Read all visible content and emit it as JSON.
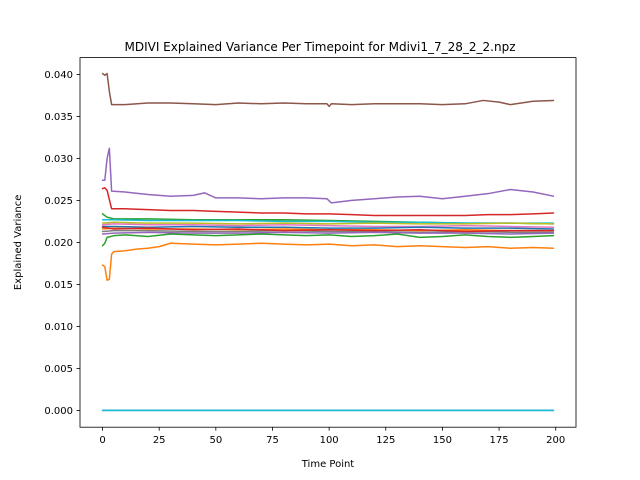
{
  "chart_data": {
    "type": "line",
    "title": "MDIVI Explained Variance Per Timepoint for Mdivi1_7_28_2_2.npz",
    "xlabel": "Time Point",
    "ylabel": "Explained Variance",
    "xlim": [
      -9.95,
      208.95
    ],
    "ylim": [
      -0.002,
      0.042
    ],
    "xticks": [
      0,
      25,
      50,
      75,
      100,
      125,
      150,
      175,
      200
    ],
    "xtick_labels": [
      "0",
      "25",
      "50",
      "75",
      "100",
      "125",
      "150",
      "175",
      "200"
    ],
    "yticks": [
      0.0,
      0.005,
      0.01,
      0.015,
      0.02,
      0.025,
      0.03,
      0.035,
      0.04
    ],
    "ytick_labels": [
      "0.000",
      "0.005",
      "0.010",
      "0.015",
      "0.020",
      "0.025",
      "0.030",
      "0.035",
      "0.040"
    ],
    "grid": false,
    "legend": "none",
    "series": [
      {
        "color": "#8c564b",
        "points": [
          [
            0,
            0.0401
          ],
          [
            1,
            0.0399
          ],
          [
            2,
            0.0401
          ],
          [
            3,
            0.038
          ],
          [
            4,
            0.0364
          ],
          [
            10,
            0.0364
          ],
          [
            20,
            0.0366
          ],
          [
            30,
            0.0366
          ],
          [
            40,
            0.0365
          ],
          [
            50,
            0.0364
          ],
          [
            60,
            0.0366
          ],
          [
            70,
            0.0365
          ],
          [
            80,
            0.0366
          ],
          [
            90,
            0.0365
          ],
          [
            99,
            0.0365
          ],
          [
            100,
            0.0362
          ],
          [
            101,
            0.0365
          ],
          [
            110,
            0.0364
          ],
          [
            120,
            0.0365
          ],
          [
            130,
            0.0365
          ],
          [
            140,
            0.0365
          ],
          [
            150,
            0.0364
          ],
          [
            160,
            0.0365
          ],
          [
            168,
            0.0369
          ],
          [
            175,
            0.0367
          ],
          [
            180,
            0.0364
          ],
          [
            190,
            0.0368
          ],
          [
            199,
            0.0369
          ]
        ]
      },
      {
        "color": "#9467bd",
        "points": [
          [
            0,
            0.0274
          ],
          [
            1,
            0.0274
          ],
          [
            2,
            0.03
          ],
          [
            3,
            0.0312
          ],
          [
            4,
            0.0261
          ],
          [
            10,
            0.026
          ],
          [
            20,
            0.0257
          ],
          [
            30,
            0.0255
          ],
          [
            40,
            0.0256
          ],
          [
            45,
            0.0259
          ],
          [
            50,
            0.0253
          ],
          [
            60,
            0.0253
          ],
          [
            70,
            0.0252
          ],
          [
            80,
            0.0253
          ],
          [
            90,
            0.0253
          ],
          [
            99,
            0.0252
          ],
          [
            101,
            0.0247
          ],
          [
            110,
            0.025
          ],
          [
            120,
            0.0252
          ],
          [
            130,
            0.0254
          ],
          [
            140,
            0.0255
          ],
          [
            150,
            0.0252
          ],
          [
            160,
            0.0255
          ],
          [
            170,
            0.0258
          ],
          [
            180,
            0.0263
          ],
          [
            190,
            0.026
          ],
          [
            199,
            0.0255
          ]
        ]
      },
      {
        "color": "#d62728",
        "points": [
          [
            0,
            0.0264
          ],
          [
            1,
            0.0265
          ],
          [
            2,
            0.0262
          ],
          [
            4,
            0.024
          ],
          [
            10,
            0.024
          ],
          [
            20,
            0.0239
          ],
          [
            30,
            0.0238
          ],
          [
            40,
            0.0238
          ],
          [
            50,
            0.0237
          ],
          [
            60,
            0.0236
          ],
          [
            70,
            0.0235
          ],
          [
            80,
            0.0235
          ],
          [
            90,
            0.0234
          ],
          [
            100,
            0.0234
          ],
          [
            110,
            0.0233
          ],
          [
            120,
            0.0232
          ],
          [
            130,
            0.0232
          ],
          [
            140,
            0.0232
          ],
          [
            150,
            0.0232
          ],
          [
            160,
            0.0232
          ],
          [
            170,
            0.0233
          ],
          [
            180,
            0.0233
          ],
          [
            190,
            0.0234
          ],
          [
            199,
            0.0235
          ]
        ]
      },
      {
        "color": "#2ca02c",
        "points": [
          [
            0,
            0.0234
          ],
          [
            2,
            0.023
          ],
          [
            5,
            0.0228
          ],
          [
            20,
            0.0228
          ],
          [
            40,
            0.0227
          ],
          [
            60,
            0.0227
          ],
          [
            80,
            0.0227
          ],
          [
            100,
            0.0226
          ],
          [
            120,
            0.0225
          ],
          [
            140,
            0.0224
          ],
          [
            160,
            0.0223
          ],
          [
            180,
            0.0223
          ],
          [
            199,
            0.0222
          ]
        ]
      },
      {
        "color": "#17becf",
        "points": [
          [
            0,
            0.0227
          ],
          [
            5,
            0.0227
          ],
          [
            20,
            0.0226
          ],
          [
            40,
            0.0226
          ],
          [
            60,
            0.0226
          ],
          [
            80,
            0.0225
          ],
          [
            100,
            0.0225
          ],
          [
            120,
            0.0224
          ],
          [
            140,
            0.0224
          ],
          [
            160,
            0.0223
          ],
          [
            180,
            0.0223
          ],
          [
            199,
            0.0223
          ]
        ]
      },
      {
        "color": "#bcbd22",
        "points": [
          [
            0,
            0.0223
          ],
          [
            5,
            0.0224
          ],
          [
            20,
            0.0223
          ],
          [
            40,
            0.0223
          ],
          [
            60,
            0.0222
          ],
          [
            80,
            0.0223
          ],
          [
            100,
            0.0222
          ],
          [
            120,
            0.0223
          ],
          [
            140,
            0.0222
          ],
          [
            160,
            0.0222
          ],
          [
            180,
            0.0223
          ],
          [
            199,
            0.0222
          ]
        ]
      },
      {
        "color": "#e377c2",
        "points": [
          [
            0,
            0.0221
          ],
          [
            5,
            0.0222
          ],
          [
            20,
            0.0221
          ],
          [
            40,
            0.0221
          ],
          [
            60,
            0.022
          ],
          [
            80,
            0.0221
          ],
          [
            100,
            0.022
          ],
          [
            120,
            0.0219
          ],
          [
            140,
            0.0219
          ],
          [
            160,
            0.022
          ],
          [
            180,
            0.0219
          ],
          [
            199,
            0.0218
          ]
        ]
      },
      {
        "color": "#1f77b4",
        "points": [
          [
            0,
            0.0219
          ],
          [
            5,
            0.0219
          ],
          [
            20,
            0.0218
          ],
          [
            40,
            0.0219
          ],
          [
            60,
            0.0218
          ],
          [
            80,
            0.0218
          ],
          [
            100,
            0.0217
          ],
          [
            120,
            0.0217
          ],
          [
            140,
            0.0218
          ],
          [
            160,
            0.0217
          ],
          [
            180,
            0.0217
          ],
          [
            199,
            0.0216
          ]
        ]
      },
      {
        "color": "#ff7f0e",
        "points": [
          [
            0,
            0.0216
          ],
          [
            5,
            0.0217
          ],
          [
            20,
            0.0216
          ],
          [
            40,
            0.0216
          ],
          [
            60,
            0.0215
          ],
          [
            80,
            0.0216
          ],
          [
            100,
            0.0215
          ],
          [
            120,
            0.0215
          ],
          [
            140,
            0.0214
          ],
          [
            160,
            0.0215
          ],
          [
            180,
            0.0214
          ],
          [
            199,
            0.0214
          ]
        ]
      },
      {
        "color": "#7f7f7f",
        "points": [
          [
            0,
            0.0213
          ],
          [
            5,
            0.0214
          ],
          [
            20,
            0.0214
          ],
          [
            40,
            0.0213
          ],
          [
            60,
            0.0213
          ],
          [
            80,
            0.0214
          ],
          [
            100,
            0.0213
          ],
          [
            120,
            0.0213
          ],
          [
            140,
            0.0212
          ],
          [
            160,
            0.0213
          ],
          [
            180,
            0.0212
          ],
          [
            199,
            0.0212
          ]
        ]
      },
      {
        "color": "#9467bd",
        "points": [
          [
            0,
            0.021
          ],
          [
            5,
            0.0211
          ],
          [
            20,
            0.0212
          ],
          [
            40,
            0.0211
          ],
          [
            60,
            0.0211
          ],
          [
            80,
            0.0212
          ],
          [
            100,
            0.0211
          ],
          [
            120,
            0.0212
          ],
          [
            140,
            0.0211
          ],
          [
            160,
            0.0211
          ],
          [
            180,
            0.021
          ],
          [
            199,
            0.0211
          ]
        ]
      },
      {
        "color": "#d62728",
        "points": [
          [
            0,
            0.0218
          ],
          [
            5,
            0.0216
          ],
          [
            20,
            0.0217
          ],
          [
            40,
            0.0215
          ],
          [
            60,
            0.0216
          ],
          [
            80,
            0.0214
          ],
          [
            100,
            0.0215
          ],
          [
            120,
            0.0214
          ],
          [
            140,
            0.0215
          ],
          [
            160,
            0.0213
          ],
          [
            180,
            0.0214
          ],
          [
            199,
            0.0214
          ]
        ]
      },
      {
        "color": "#2ca02c",
        "points": [
          [
            0,
            0.0196
          ],
          [
            1,
            0.0199
          ],
          [
            2,
            0.0206
          ],
          [
            5,
            0.0208
          ],
          [
            10,
            0.0209
          ],
          [
            20,
            0.0207
          ],
          [
            30,
            0.021
          ],
          [
            40,
            0.0209
          ],
          [
            50,
            0.0208
          ],
          [
            60,
            0.0209
          ],
          [
            70,
            0.021
          ],
          [
            80,
            0.0209
          ],
          [
            90,
            0.0208
          ],
          [
            100,
            0.0209
          ],
          [
            110,
            0.0207
          ],
          [
            120,
            0.0208
          ],
          [
            130,
            0.021
          ],
          [
            140,
            0.0206
          ],
          [
            150,
            0.0207
          ],
          [
            160,
            0.0209
          ],
          [
            170,
            0.0207
          ],
          [
            180,
            0.0206
          ],
          [
            190,
            0.0207
          ],
          [
            199,
            0.0208
          ]
        ]
      },
      {
        "color": "#ff7f0e",
        "points": [
          [
            0,
            0.0173
          ],
          [
            1,
            0.0171
          ],
          [
            2,
            0.0155
          ],
          [
            3,
            0.0156
          ],
          [
            4,
            0.0186
          ],
          [
            5,
            0.0189
          ],
          [
            10,
            0.019
          ],
          [
            15,
            0.0192
          ],
          [
            20,
            0.0193
          ],
          [
            25,
            0.0195
          ],
          [
            30,
            0.0199
          ],
          [
            40,
            0.0198
          ],
          [
            50,
            0.0197
          ],
          [
            60,
            0.0198
          ],
          [
            70,
            0.0199
          ],
          [
            80,
            0.0198
          ],
          [
            90,
            0.0197
          ],
          [
            100,
            0.0198
          ],
          [
            110,
            0.0196
          ],
          [
            120,
            0.0197
          ],
          [
            130,
            0.0195
          ],
          [
            140,
            0.0196
          ],
          [
            150,
            0.0195
          ],
          [
            160,
            0.0194
          ],
          [
            170,
            0.0195
          ],
          [
            180,
            0.0193
          ],
          [
            190,
            0.0194
          ],
          [
            199,
            0.0193
          ]
        ]
      },
      {
        "color": "#1f77b4",
        "points": [
          [
            0,
            0.0
          ],
          [
            199,
            0.0
          ]
        ]
      },
      {
        "color": "#17becf",
        "points": [
          [
            0,
            0.0
          ],
          [
            199,
            0.0
          ]
        ]
      }
    ]
  }
}
